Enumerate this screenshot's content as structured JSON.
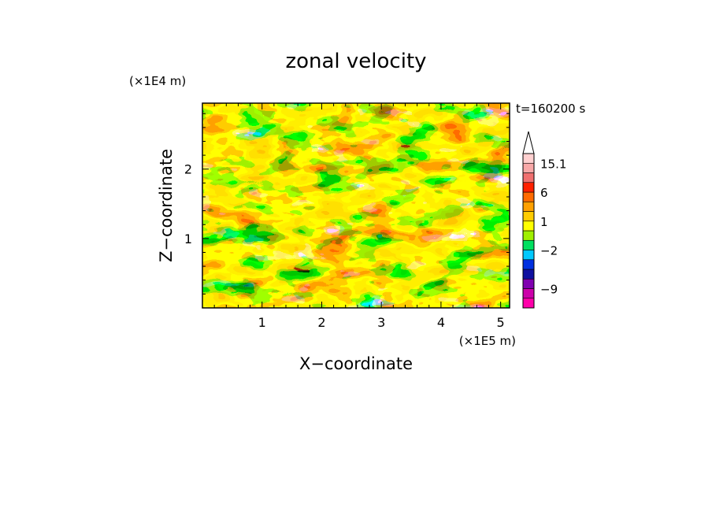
{
  "chart_data": {
    "type": "heatmap",
    "title": "zonal velocity",
    "xlabel": "X−coordinate",
    "ylabel": "Z−coordinate",
    "x_unit": "(×1E5 m)",
    "y_unit": "(×1E4 m)",
    "time_label": "t=160200 s",
    "xlim": [
      0,
      5.15
    ],
    "ylim": [
      0,
      2.95
    ],
    "x_ticks": [
      1,
      2,
      3,
      4,
      5
    ],
    "y_ticks": [
      1,
      2
    ],
    "x_tick_labels": [
      "1",
      "2",
      "3",
      "4",
      "5"
    ],
    "y_tick_labels": [
      "1",
      "2"
    ],
    "colorbar": {
      "labels": [
        {
          "value": 15.1,
          "text": "15.1"
        },
        {
          "value": 6,
          "text": "6"
        },
        {
          "value": 1,
          "text": "1"
        },
        {
          "value": -2,
          "text": "−2"
        },
        {
          "value": -9,
          "text": "−9"
        }
      ],
      "colors": [
        "#ff00aa",
        "#cc00aa",
        "#8000b0",
        "#1010a0",
        "#0030e0",
        "#00c8ff",
        "#00e060",
        "#a0f000",
        "#ffff00",
        "#ffcc00",
        "#ffa000",
        "#ff6a00",
        "#ff2000",
        "#f07070",
        "#f8a8a8",
        "#ffd0d0"
      ]
    }
  }
}
